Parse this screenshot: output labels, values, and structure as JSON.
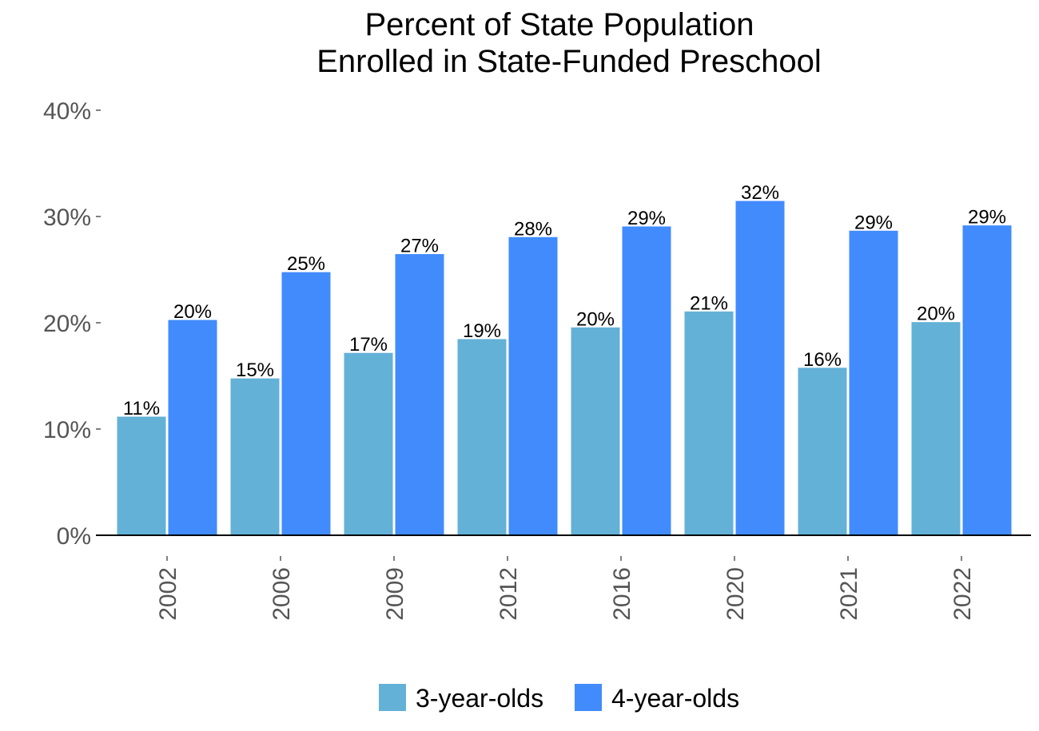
{
  "chart_data": {
    "type": "bar",
    "title": [
      "Percent of State Population",
      "Enrolled in State-Funded Preschool"
    ],
    "xlabel": "",
    "ylabel": "",
    "categories": [
      "2002",
      "2006",
      "2009",
      "2012",
      "2016",
      "2020",
      "2021",
      "2022"
    ],
    "series": [
      {
        "name": "3-year-olds",
        "color": "#63b1d7",
        "values": [
          11.2,
          14.8,
          17.2,
          18.5,
          19.6,
          21.1,
          15.8,
          20.1
        ],
        "labels": [
          "11%",
          "15%",
          "17%",
          "19%",
          "20%",
          "21%",
          "16%",
          "20%"
        ]
      },
      {
        "name": "4-year-olds",
        "color": "#418bfd",
        "values": [
          20.3,
          24.8,
          26.5,
          28.1,
          29.1,
          31.5,
          28.7,
          29.2
        ],
        "labels": [
          "20%",
          "25%",
          "27%",
          "28%",
          "29%",
          "32%",
          "29%",
          "29%"
        ]
      }
    ],
    "ylim": [
      0,
      40
    ],
    "yticks": [
      0,
      10,
      20,
      30,
      40
    ],
    "ytick_labels": [
      "0%",
      "10%",
      "20%",
      "30%",
      "40%"
    ],
    "grid": false,
    "legend_position": "bottom"
  }
}
